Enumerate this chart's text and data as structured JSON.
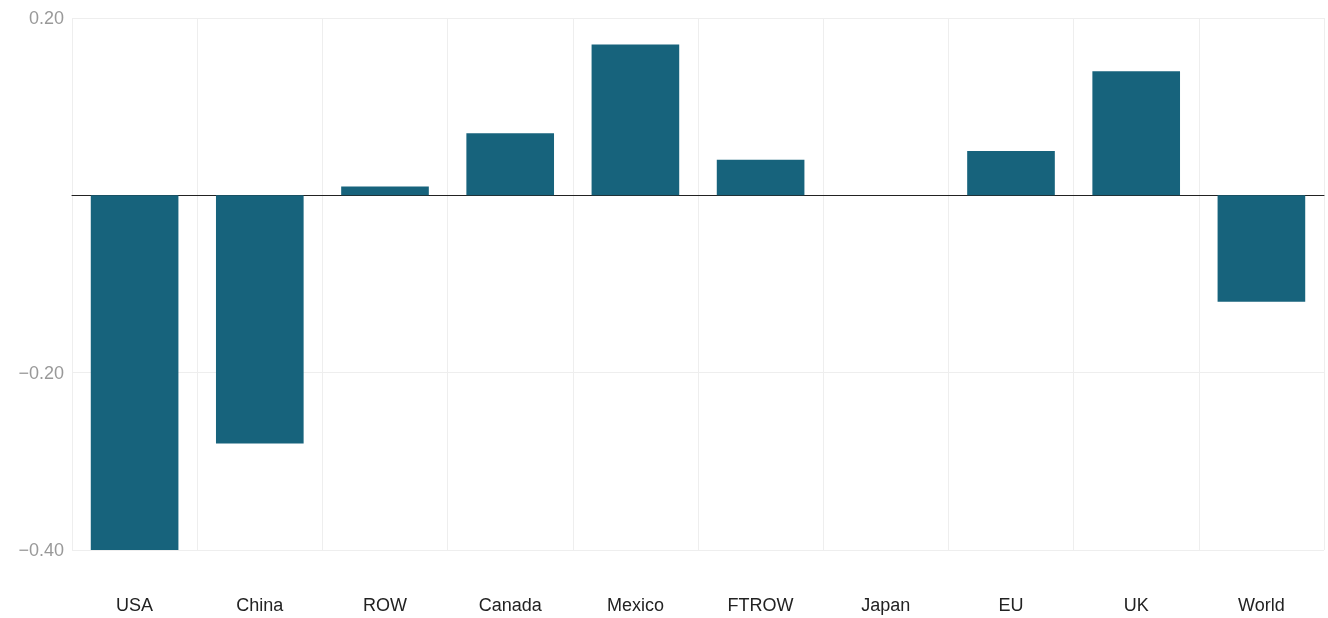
{
  "chart_data": {
    "type": "bar",
    "categories": [
      "USA",
      "China",
      "ROW",
      "Canada",
      "Mexico",
      "FTROW",
      "Japan",
      "EU",
      "UK",
      "World"
    ],
    "values": [
      -0.4,
      -0.28,
      0.01,
      0.07,
      0.17,
      0.04,
      0,
      0.05,
      0.14,
      -0.12
    ],
    "color": "#17637c",
    "ylim": [
      -0.4,
      0.2
    ],
    "yticks": [
      {
        "value": 0.2,
        "label": "0.20"
      },
      {
        "value": 0,
        "label": null
      },
      {
        "value": -0.2,
        "label": "−0.20"
      },
      {
        "value": -0.4,
        "label": "−0.40"
      }
    ],
    "grid": true
  }
}
